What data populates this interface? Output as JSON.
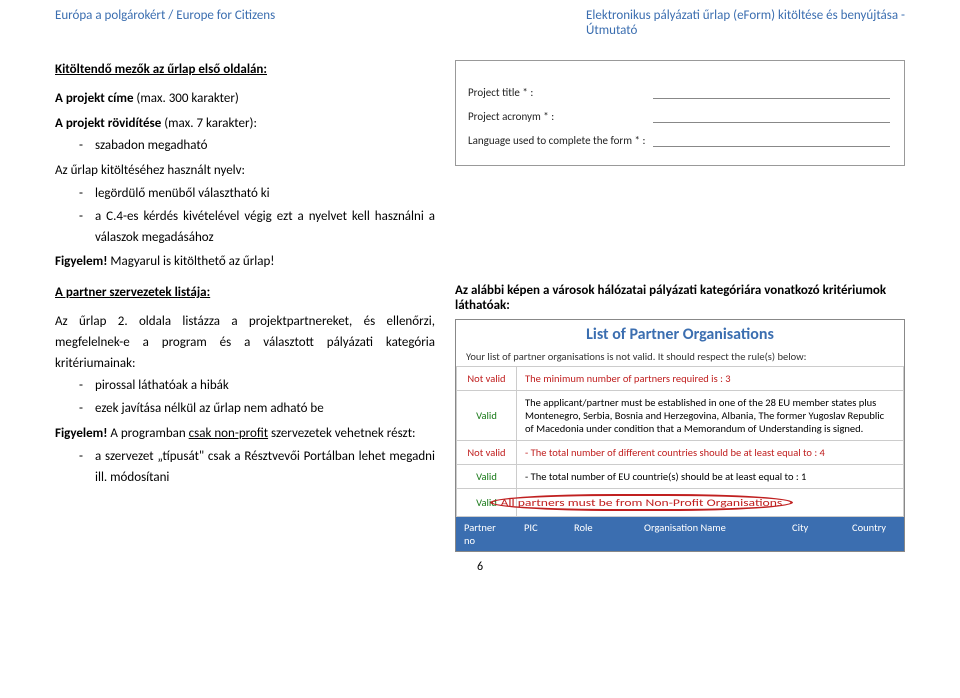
{
  "header": {
    "left": "Európa a polgárokért / Europe for Citizens",
    "right_line1": "Elektronikus pályázati űrlap (eForm) kitöltése és benyújtása -",
    "right_line2": "Útmutató"
  },
  "left": {
    "h1": "Kitöltendő mezők az űrlap első oldalán:",
    "p1a": "A projekt címe",
    "p1b": " (max. 300 karakter)",
    "p2a": "A projekt rövidítése",
    "p2b": " (max. 7 karakter):",
    "b1": "szabadon megadható",
    "p3": "Az űrlap kitöltéséhez használt nyelv:",
    "b2": "legördülő menüből választható ki",
    "b3": "a C.4-es kérdés kivételével végig ezt a nyelvet kell használni a válaszok megadásához",
    "fig1": "Figyelem!",
    "fig1b": " Magyarul is kitölthető az űrlap!"
  },
  "form": {
    "l1": "Project title * :",
    "l2": "Project acronym * :",
    "l3": "Language used to complete the form * :"
  },
  "left2": {
    "h2": "A partner szervezetek listája:",
    "p4": "Az űrlap 2. oldala listázza a projektpartnereket, és ellenőrzi, megfelelnek-e a program és a választott pályázati kategória kritériumainak:",
    "b4": "pirossal láthatóak a hibák",
    "b5": "ezek javítása nélkül az űrlap nem adható be",
    "fig2": "Figyelem!",
    "fig2b": " A programban ",
    "fig2c": "csak non-profit",
    "fig2d": " szervezetek vehetnek részt:",
    "b6": "a szervezet „típusát\" csak a Résztvevői Portálban lehet megadni ill. módosítani"
  },
  "right2": {
    "note": "Az alábbi képen a városok hálózatai pályázati kategóriára vonatkozó kritériumok láthatóak:",
    "title": "List of Partner Organisations",
    "sub": "Your list of partner organisations is not valid. It should respect the rule(s) below:",
    "rows": [
      {
        "status": "Not valid",
        "cls": "notvalid",
        "text": "The minimum number of partners required is : 3",
        "red": true
      },
      {
        "status": "Valid",
        "cls": "valid",
        "text": "The applicant/partner must be established in one of the 28 EU member states plus Montenegro, Serbia, Bosnia and Herzegovina, Albania, The former Yugoslav Republic of Macedonia under condition that a Memorandum of Understanding is signed.",
        "red": false
      },
      {
        "status": "Not valid",
        "cls": "notvalid",
        "text": "- The total number of different countries should be at least equal to : 4",
        "red": true
      },
      {
        "status": "Valid",
        "cls": "valid",
        "text": "- The total number of EU countrie(s) should be at least equal to : 1",
        "red": false
      },
      {
        "status": "Valid",
        "cls": "valid",
        "text": "All partners must be from Non-Profit Organisations",
        "red": true,
        "circled": true
      }
    ],
    "th": [
      "Partner no",
      "PIC",
      "Role",
      "Organisation Name",
      "City",
      "Country"
    ]
  },
  "pagenum": "6",
  "colors": {
    "blue": "#3b6eb0",
    "red": "#c02020",
    "green": "#1a7a1a",
    "border": "#888"
  }
}
